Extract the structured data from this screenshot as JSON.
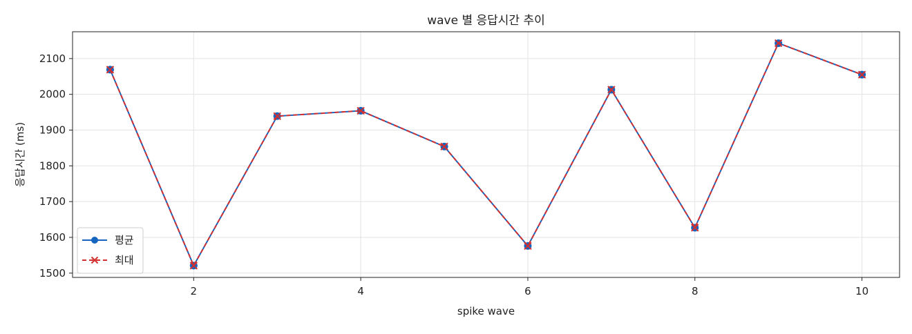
{
  "chart_data": {
    "type": "line",
    "title": "wave 별 응답시간 추이",
    "xlabel": "spike wave",
    "ylabel": "응답시간 (ms)",
    "x": [
      1,
      2,
      3,
      4,
      5,
      6,
      7,
      8,
      9,
      10
    ],
    "xlim": [
      0.55,
      10.45
    ],
    "ylim": [
      1488,
      2175
    ],
    "xticks": [
      2,
      4,
      6,
      8,
      10
    ],
    "yticks": [
      1500,
      1600,
      1700,
      1800,
      1900,
      2000,
      2100
    ],
    "grid": true,
    "legend_position": "lower-left",
    "series": [
      {
        "name": "평균",
        "values": [
          2069,
          1521,
          1939,
          1954,
          1854,
          1576,
          2013,
          1627,
          2143,
          2055
        ],
        "color": "#1565c0",
        "marker": "circle",
        "linestyle": "solid"
      },
      {
        "name": "최대",
        "values": [
          2069,
          1521,
          1939,
          1954,
          1854,
          1576,
          2013,
          1627,
          2143,
          2055
        ],
        "color": "#d32f2f",
        "marker": "x",
        "linestyle": "dashed"
      }
    ]
  }
}
